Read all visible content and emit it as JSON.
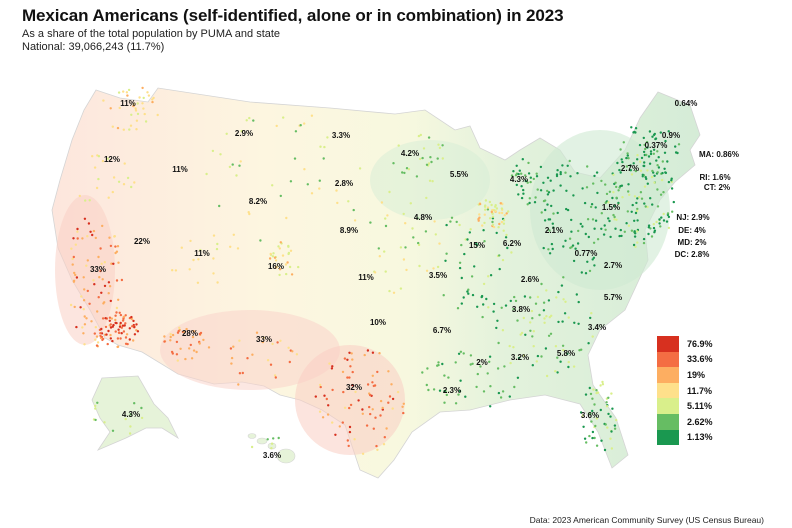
{
  "header": {
    "title": "Mexican Americans (self-identified, alone or in combination) in 2023",
    "subtitle": "As a share of the total population by PUMA and state",
    "national": "National: 39,066,243 (11.7%)"
  },
  "legend": {
    "items": [
      {
        "label": "76.9%",
        "color": "#d7301f"
      },
      {
        "label": "33.6%",
        "color": "#f46d43"
      },
      {
        "label": "19%",
        "color": "#fdae61"
      },
      {
        "label": "11.7%",
        "color": "#fee08b"
      },
      {
        "label": "5.11%",
        "color": "#d9ef8b"
      },
      {
        "label": "2.62%",
        "color": "#66bd63"
      },
      {
        "label": "1.13%",
        "color": "#1a9850"
      }
    ]
  },
  "states": [
    {
      "state": "WA",
      "label": "11%"
    },
    {
      "state": "OR",
      "label": "12%"
    },
    {
      "state": "CA",
      "label": "33%"
    },
    {
      "state": "NV",
      "label": "22%"
    },
    {
      "state": "ID",
      "label": "11%"
    },
    {
      "state": "MT",
      "label": "2.9%"
    },
    {
      "state": "WY",
      "label": "8.2%"
    },
    {
      "state": "UT",
      "label": "11%"
    },
    {
      "state": "CO",
      "label": "16%"
    },
    {
      "state": "AZ",
      "label": "28%"
    },
    {
      "state": "NM",
      "label": "33%"
    },
    {
      "state": "ND",
      "label": "3.3%"
    },
    {
      "state": "SD",
      "label": "2.8%"
    },
    {
      "state": "NE",
      "label": "8.9%"
    },
    {
      "state": "KS",
      "label": "11%"
    },
    {
      "state": "OK",
      "label": "10%"
    },
    {
      "state": "TX",
      "label": "32%"
    },
    {
      "state": "MN",
      "label": "4.2%"
    },
    {
      "state": "IA",
      "label": "4.8%"
    },
    {
      "state": "MO",
      "label": "3.5%"
    },
    {
      "state": "AR",
      "label": "6.7%"
    },
    {
      "state": "LA",
      "label": "2.3%"
    },
    {
      "state": "WI",
      "label": "5.5%"
    },
    {
      "state": "IL",
      "label": "15%"
    },
    {
      "state": "MI",
      "label": "4.3%"
    },
    {
      "state": "IN",
      "label": "6.2%"
    },
    {
      "state": "OH",
      "label": "2.1%"
    },
    {
      "state": "KY",
      "label": "2.6%"
    },
    {
      "state": "TN",
      "label": "3.8%"
    },
    {
      "state": "MS",
      "label": "2%"
    },
    {
      "state": "AL",
      "label": "3.2%"
    },
    {
      "state": "GA",
      "label": "5.8%"
    },
    {
      "state": "FL",
      "label": "3.6%"
    },
    {
      "state": "SC",
      "label": "3.4%"
    },
    {
      "state": "NC",
      "label": "5.7%"
    },
    {
      "state": "VA",
      "label": "2.7%"
    },
    {
      "state": "WV",
      "label": "0.77%"
    },
    {
      "state": "PA",
      "label": "1.5%"
    },
    {
      "state": "NY",
      "label": "2.7%"
    },
    {
      "state": "VT",
      "label": "0.37%"
    },
    {
      "state": "NH",
      "label": "0.9%"
    },
    {
      "state": "ME",
      "label": "0.64%"
    },
    {
      "state": "MA",
      "label": "MA: 0.86%"
    },
    {
      "state": "RI",
      "label": "RI: 1.6%"
    },
    {
      "state": "CT",
      "label": "CT: 2%"
    },
    {
      "state": "NJ",
      "label": "NJ: 2.9%"
    },
    {
      "state": "DE",
      "label": "DE: 4%"
    },
    {
      "state": "MD",
      "label": "MD: 2%"
    },
    {
      "state": "DC",
      "label": "DC: 2.8%"
    },
    {
      "state": "AK",
      "label": "4.3%"
    },
    {
      "state": "HI",
      "label": "3.6%"
    }
  ],
  "source": "Data: 2023 American Community Survey (US Census Bureau)"
}
